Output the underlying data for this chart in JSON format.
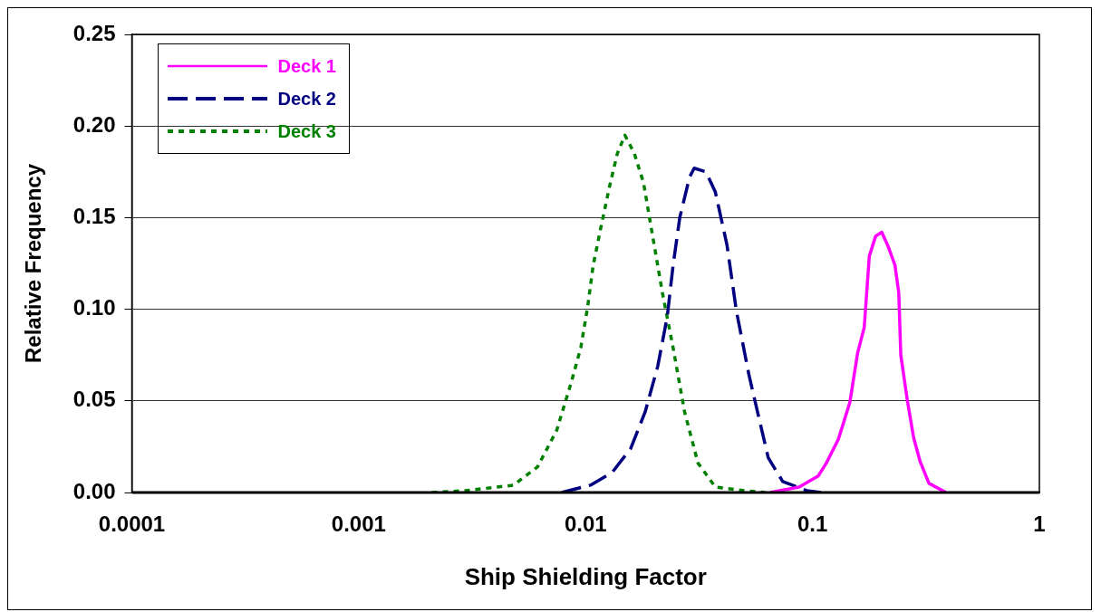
{
  "chart_data": {
    "type": "line",
    "xlabel": "Ship Shielding Factor",
    "ylabel": "Relative Frequency",
    "log": "x",
    "xlim": [
      0.0001,
      1
    ],
    "xticks": [
      0.0001,
      0.001,
      0.01,
      0.1,
      1
    ],
    "ylim": [
      0,
      0.25
    ],
    "yticks": [
      {
        "value": 0,
        "label": "0.00"
      },
      {
        "value": 0.05,
        "label": "0.05"
      },
      {
        "value": 0.1,
        "label": "0.10"
      },
      {
        "value": 0.15,
        "label": "0.15"
      },
      {
        "value": 0.2,
        "label": "0.20"
      },
      {
        "value": 0.25,
        "label": "0.25"
      }
    ],
    "grid": "y",
    "legend": "top left",
    "marker": "none",
    "series": [
      {
        "name": "Deck 1",
        "color": "#ff00ff",
        "line_style": "solid",
        "x": [
          0.0651,
          0.0873,
          0.106,
          0.115,
          0.13,
          0.146,
          0.158,
          0.169,
          0.178,
          0.19,
          0.202,
          0.216,
          0.231,
          0.24,
          0.245,
          0.262,
          0.279,
          0.298,
          0.326,
          0.388
        ],
        "values": [
          0,
          0.003,
          0.009,
          0.016,
          0.029,
          0.049,
          0.076,
          0.09,
          0.129,
          0.14,
          0.142,
          0.134,
          0.124,
          0.109,
          0.075,
          0.05,
          0.03,
          0.017,
          0.005,
          0
        ]
      },
      {
        "name": "Deck 2",
        "color": "#000080",
        "line_style": "dashed",
        "x": [
          0.00784,
          0.0105,
          0.0131,
          0.0158,
          0.0183,
          0.0208,
          0.0229,
          0.0243,
          0.026,
          0.0287,
          0.0301,
          0.0339,
          0.0373,
          0.042,
          0.0462,
          0.0525,
          0.0585,
          0.0638,
          0.0739,
          0.0944,
          0.109
        ],
        "values": [
          0,
          0.004,
          0.011,
          0.024,
          0.044,
          0.069,
          0.096,
          0.124,
          0.15,
          0.172,
          0.177,
          0.175,
          0.164,
          0.135,
          0.099,
          0.064,
          0.039,
          0.019,
          0.006,
          0.001,
          0
        ]
      },
      {
        "name": "Deck 3",
        "color": "#008000",
        "line_style": "dotted",
        "x": [
          0.0021,
          0.00295,
          0.00481,
          0.00614,
          0.00746,
          0.00864,
          0.00952,
          0.0102,
          0.0108,
          0.0116,
          0.0128,
          0.0138,
          0.0149,
          0.0164,
          0.018,
          0.0198,
          0.0218,
          0.0243,
          0.0273,
          0.0313,
          0.0373,
          0.05,
          0.062
        ],
        "values": [
          0,
          0.001,
          0.004,
          0.014,
          0.034,
          0.06,
          0.079,
          0.101,
          0.124,
          0.143,
          0.168,
          0.185,
          0.195,
          0.185,
          0.169,
          0.139,
          0.109,
          0.079,
          0.044,
          0.016,
          0.003,
          0.001,
          0
        ]
      }
    ]
  }
}
